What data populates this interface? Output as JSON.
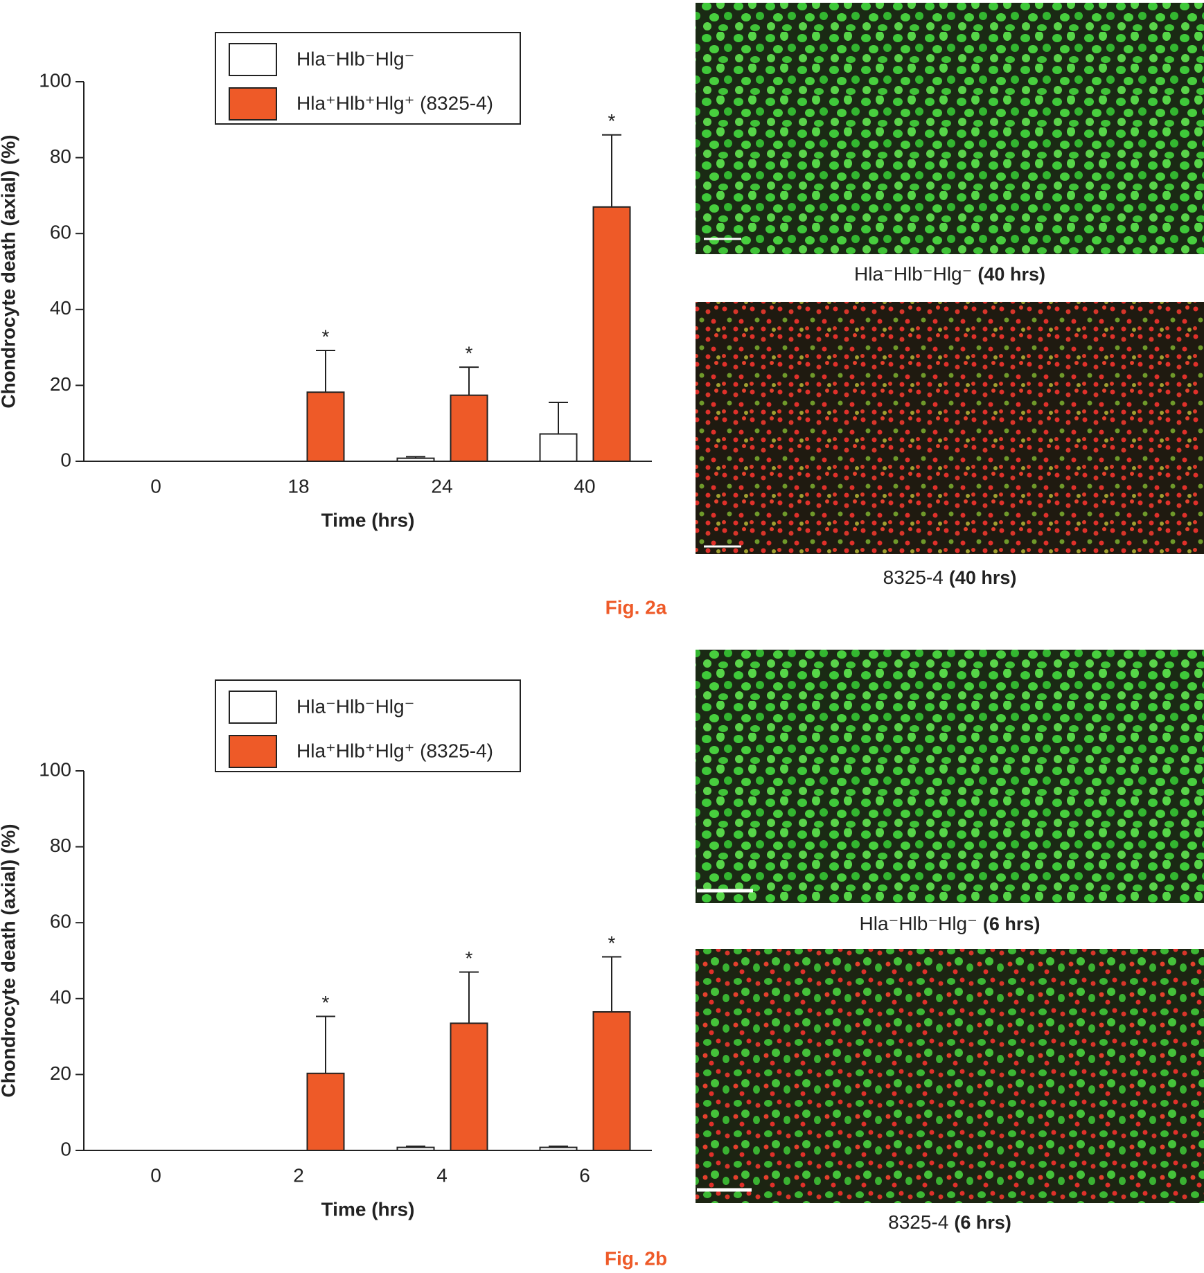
{
  "chart_data": [
    {
      "type": "bar",
      "panel_label": "Fig. 2a",
      "x_label": "Time (hrs)",
      "y_label": "Chondrocyte death (axial) (%)",
      "categories": [
        "0",
        "18",
        "24",
        "40"
      ],
      "series": [
        {
          "name": "Hla⁻Hlb⁻Hlg⁻",
          "color": "#ffffff",
          "values": [
            0,
            0,
            0.8,
            7.2
          ],
          "errors": [
            0,
            0,
            0.4,
            8.3
          ],
          "value_labels": [
            null,
            null,
            null,
            null
          ]
        },
        {
          "name": "Hla⁺Hlb⁺Hlg⁺ (8325-4)",
          "color": "#ee5a28",
          "values": [
            0,
            18.2,
            17.4,
            67
          ],
          "errors": [
            0,
            11,
            7.4,
            19
          ],
          "value_labels": [
            null,
            "*",
            "*",
            "*"
          ]
        }
      ],
      "ylim": [
        0,
        100
      ],
      "yticks": [
        0,
        20,
        40,
        60,
        80,
        100
      ],
      "grid": false,
      "images": [
        {
          "caption": "Hla⁻Hlb⁻Hlg⁻",
          "time": "(40 hrs)"
        },
        {
          "caption": "8325-4",
          "time": "(40 hrs)"
        }
      ]
    },
    {
      "type": "bar",
      "panel_label": "Fig. 2b",
      "x_label": "Time (hrs)",
      "y_label": "Chondrocyte death (axial) (%)",
      "categories": [
        "0",
        "2",
        "4",
        "6"
      ],
      "series": [
        {
          "name": "Hla⁻Hlb⁻Hlg⁻",
          "color": "#ffffff",
          "values": [
            0,
            0,
            0.8,
            0.8
          ],
          "errors": [
            0,
            0,
            0.3,
            0.3
          ],
          "value_labels": [
            null,
            null,
            null,
            null
          ]
        },
        {
          "name": "Hla⁺Hlb⁺Hlg⁺ (8325-4)",
          "color": "#ee5a28",
          "values": [
            0,
            20.3,
            33.5,
            36.5
          ],
          "errors": [
            0,
            15,
            13.5,
            14.5
          ],
          "value_labels": [
            null,
            "*",
            "*",
            "*"
          ]
        }
      ],
      "ylim": [
        0,
        100
      ],
      "yticks": [
        0,
        20,
        40,
        60,
        80,
        100
      ],
      "grid": false,
      "images": [
        {
          "caption": "Hla⁻Hlb⁻Hlg⁻",
          "time": "(6 hrs)"
        },
        {
          "caption": "8325-4",
          "time": "(6 hrs)"
        }
      ]
    }
  ]
}
